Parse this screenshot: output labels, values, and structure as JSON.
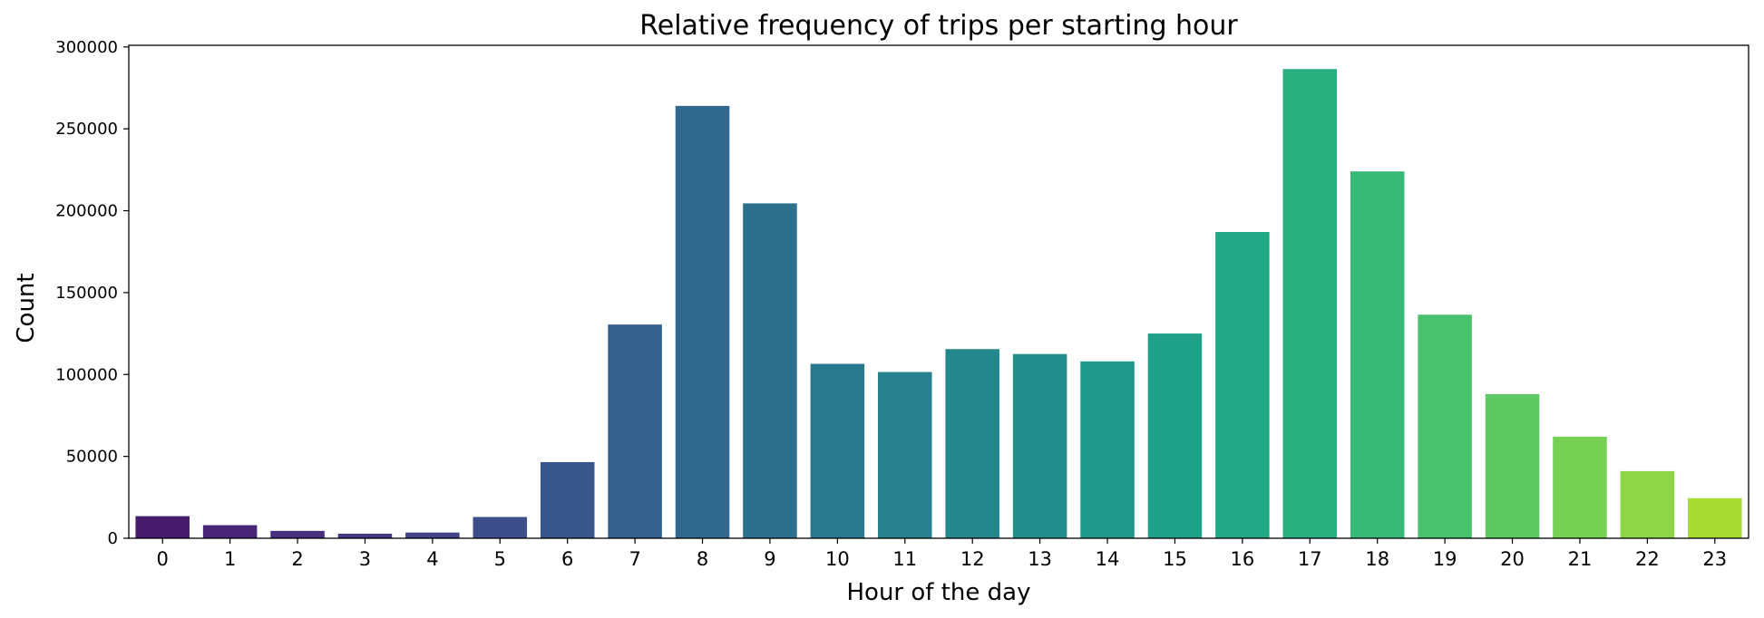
{
  "chart_data": {
    "type": "bar",
    "title": "Relative frequency of trips per starting hour",
    "xlabel": "Hour of the day",
    "ylabel": "Count",
    "categories": [
      "0",
      "1",
      "2",
      "3",
      "4",
      "5",
      "6",
      "7",
      "8",
      "9",
      "10",
      "11",
      "12",
      "13",
      "14",
      "15",
      "16",
      "17",
      "18",
      "19",
      "20",
      "21",
      "22",
      "23"
    ],
    "values": [
      13500,
      8000,
      4500,
      2800,
      3500,
      13000,
      46500,
      130500,
      264000,
      204500,
      106500,
      101500,
      115500,
      112500,
      108000,
      125000,
      187000,
      286500,
      224000,
      136500,
      88000,
      62000,
      41000,
      24500
    ],
    "colors": [
      "#481a6c",
      "#482576",
      "#472f7d",
      "#443a83",
      "#414487",
      "#3d4e8a",
      "#39568c",
      "#355f8d",
      "#31688e",
      "#2e6f8e",
      "#2a788e",
      "#27808e",
      "#25878e",
      "#228f8d",
      "#1f988b",
      "#1fa088",
      "#22a884",
      "#2ab07f",
      "#38b977",
      "#4ac16d",
      "#5ec962",
      "#75d054",
      "#8ed645",
      "#a8db34"
    ],
    "yticks": [
      0,
      50000,
      100000,
      150000,
      200000,
      250000,
      300000
    ],
    "ylim": [
      0,
      301000
    ],
    "grid": false,
    "legend": "none"
  }
}
